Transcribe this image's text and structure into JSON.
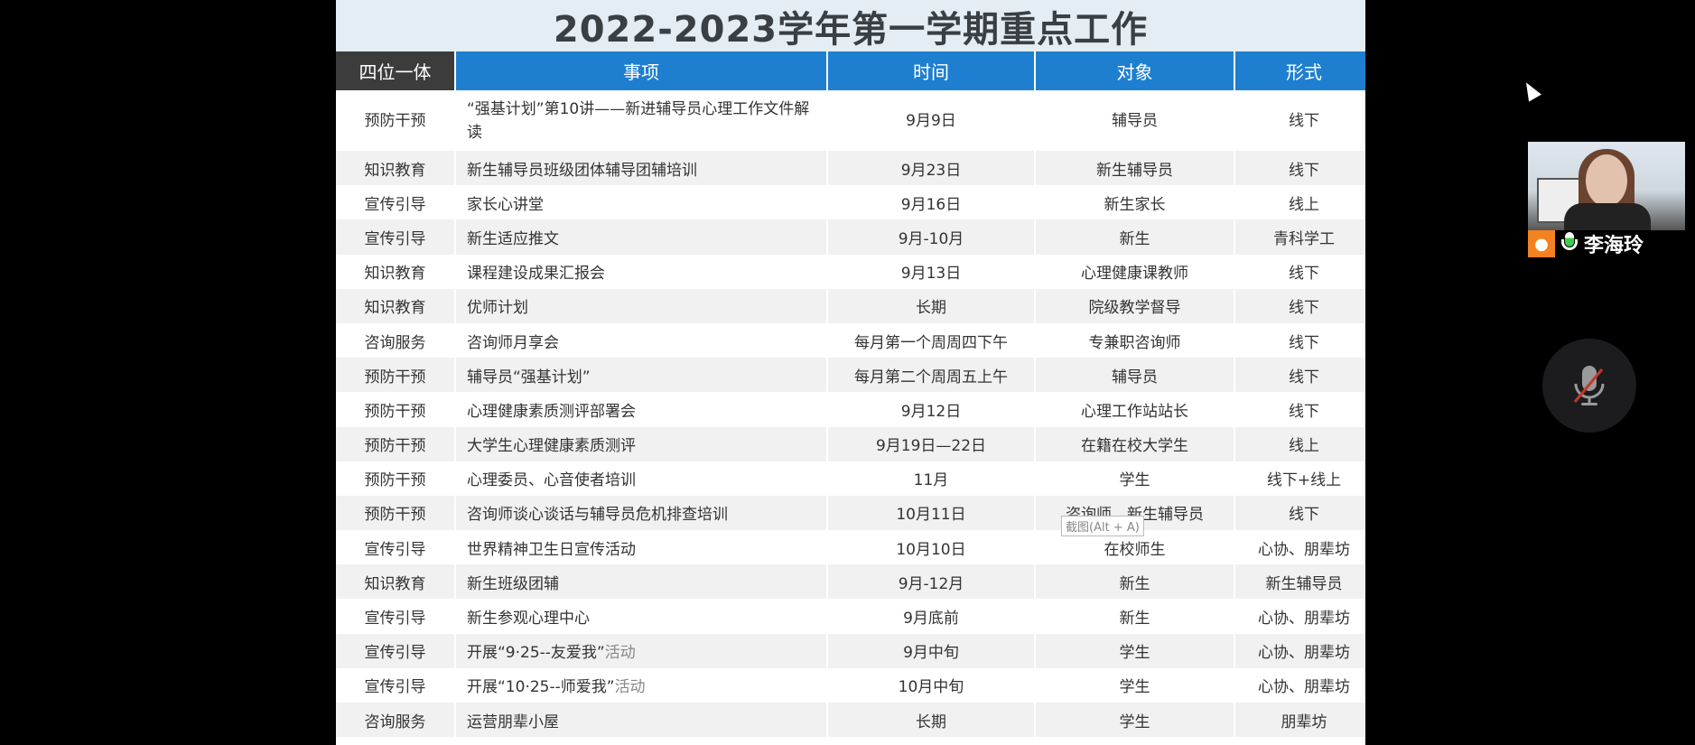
{
  "slide": {
    "title": "2022-2023学年第一学期重点工作",
    "columns": [
      "四位一体",
      "事项",
      "时间",
      "对象",
      "形式"
    ],
    "rows": [
      {
        "type": "预防干预",
        "item": "“强基计划”第10讲——新进辅导员心理工作文件解读",
        "time": "9月9日",
        "target": "辅导员",
        "form": "线下"
      },
      {
        "type": "知识教育",
        "item": "新生辅导员班级团体辅导团辅培训",
        "time": "9月23日",
        "target": "新生辅导员",
        "form": "线下"
      },
      {
        "type": "宣传引导",
        "item": "家长心讲堂",
        "time": "9月16日",
        "target": "新生家长",
        "form": "线上"
      },
      {
        "type": "宣传引导",
        "item": "新生适应推文",
        "time": "9月-10月",
        "target": "新生",
        "form": "青科学工"
      },
      {
        "type": "知识教育",
        "item": "课程建设成果汇报会",
        "time": "9月13日",
        "target": "心理健康课教师",
        "form": "线下"
      },
      {
        "type": "知识教育",
        "item": "优师计划",
        "time": "长期",
        "target": "院级教学督导",
        "form": "线下"
      },
      {
        "type": "咨询服务",
        "item": "咨询师月享会",
        "time": "每月第一个周周四下午",
        "target": "专兼职咨询师",
        "form": "线下"
      },
      {
        "type": "预防干预",
        "item": "辅导员“强基计划”",
        "time": "每月第二个周周五上午",
        "target": "辅导员",
        "form": "线下"
      },
      {
        "type": "预防干预",
        "item": "心理健康素质测评部署会",
        "time": "9月12日",
        "target": "心理工作站站长",
        "form": "线下"
      },
      {
        "type": "预防干预",
        "item": "大学生心理健康素质测评",
        "time": "9月19日—22日",
        "target": "在籍在校大学生",
        "form": "线上"
      },
      {
        "type": "预防干预",
        "item": "心理委员、心音使者培训",
        "time": "11月",
        "target": "学生",
        "form": "线下+线上"
      },
      {
        "type": "预防干预",
        "item": "咨询师谈心谈话与辅导员危机排查培训",
        "time": "10月11日",
        "target": "咨询师、新生辅导员",
        "form": "线下"
      },
      {
        "type": "宣传引导",
        "item": "世界精神卫生日宣传活动",
        "time": "10月10日",
        "target": "在校师生",
        "form": "心协、朋辈坊"
      },
      {
        "type": "知识教育",
        "item": "新生班级团辅",
        "time": "9月-12月",
        "target": "新生",
        "form": "新生辅导员"
      },
      {
        "type": "宣传引导",
        "item": "新生参观心理中心",
        "time": "9月底前",
        "target": "新生",
        "form": "心协、朋辈坊"
      },
      {
        "type": "宣传引导",
        "item": "开展“9·25--友爱我”",
        "item_suffix": "活动",
        "time": "9月中旬",
        "target": "学生",
        "form": "心协、朋辈坊"
      },
      {
        "type": "宣传引导",
        "item": "开展“10·25--师爱我”",
        "item_suffix": "活动",
        "time": "10月中旬",
        "target": "学生",
        "form": "心协、朋辈坊"
      },
      {
        "type": "咨询服务",
        "item": "运营朋辈小屋",
        "time": "长期",
        "target": "学生",
        "form": "朋辈坊"
      }
    ]
  },
  "tooltip": "截图(Alt + A)",
  "participant": {
    "name": "李海玲",
    "speaking": true
  },
  "colors": {
    "header": "#1e7fd0",
    "header_first": "#3c3c3c",
    "title_band": "#e3edf3",
    "person_icon": "#f58220",
    "mic_active": "#3ccf4e",
    "mute_slash": "#c0392b"
  },
  "icons": {
    "person": "person-icon",
    "speaker_mic": "microphone-icon",
    "mute": "microphone-muted-icon",
    "cursor": "mouse-cursor"
  }
}
